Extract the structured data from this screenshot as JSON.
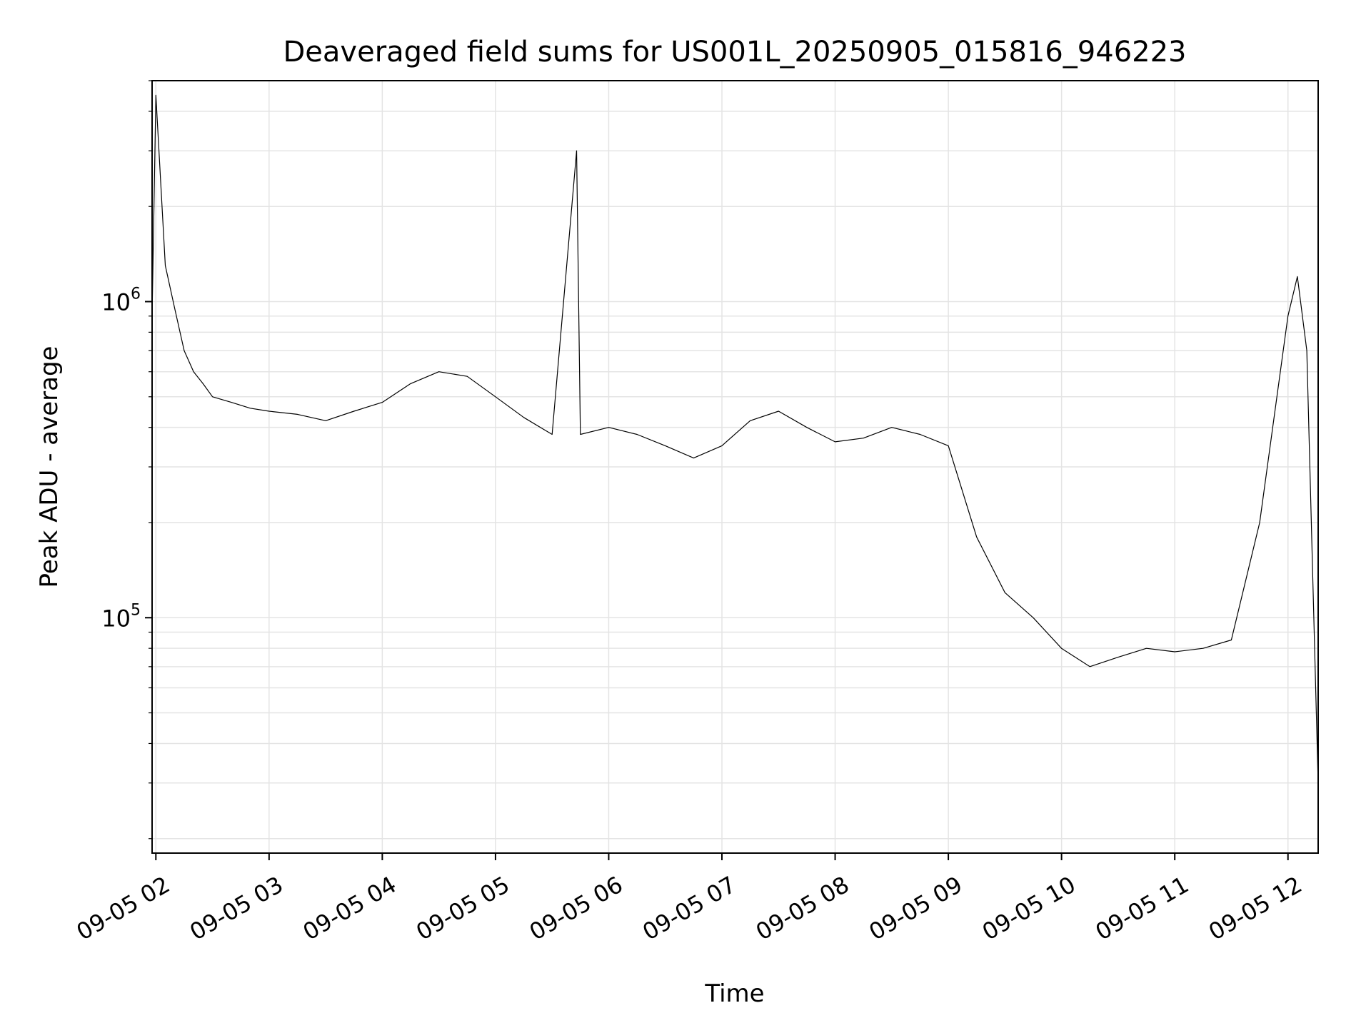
{
  "chart_data": {
    "type": "line",
    "title": "Deaveraged field sums for US001L_20250905_015816_946223",
    "xlabel": "Time",
    "ylabel": "Peak ADU - average",
    "x_tick_labels": [
      "09-05 02",
      "09-05 03",
      "09-05 04",
      "09-05 05",
      "09-05 06",
      "09-05 07",
      "09-05 08",
      "09-05 09",
      "09-05 10",
      "09-05 11",
      "09-05 12"
    ],
    "y_tick_labels": [
      {
        "base": "10",
        "exp": "5",
        "value": 100000
      },
      {
        "base": "10",
        "exp": "6",
        "value": 1000000
      }
    ],
    "y_scale": "log",
    "xlim": [
      "2025-09-05T01:58",
      "2025-09-05T12:16"
    ],
    "ylim": [
      18000,
      5000000
    ],
    "grid": true,
    "line_color": "#000000",
    "series": [
      {
        "values": [
          [
            "2025-09-05T01:58",
            900000
          ],
          [
            "2025-09-05T02:00",
            4500000
          ],
          [
            "2025-09-05T02:05",
            1300000
          ],
          [
            "2025-09-05T02:10",
            950000
          ],
          [
            "2025-09-05T02:15",
            700000
          ],
          [
            "2025-09-05T02:20",
            600000
          ],
          [
            "2025-09-05T02:25",
            550000
          ],
          [
            "2025-09-05T02:30",
            500000
          ],
          [
            "2025-09-05T02:40",
            480000
          ],
          [
            "2025-09-05T02:50",
            460000
          ],
          [
            "2025-09-05T03:00",
            450000
          ],
          [
            "2025-09-05T03:15",
            440000
          ],
          [
            "2025-09-05T03:30",
            420000
          ],
          [
            "2025-09-05T03:45",
            450000
          ],
          [
            "2025-09-05T04:00",
            480000
          ],
          [
            "2025-09-05T04:15",
            550000
          ],
          [
            "2025-09-05T04:30",
            600000
          ],
          [
            "2025-09-05T04:45",
            580000
          ],
          [
            "2025-09-05T05:00",
            500000
          ],
          [
            "2025-09-05T05:15",
            430000
          ],
          [
            "2025-09-05T05:30",
            380000
          ],
          [
            "2025-09-05T05:43",
            3000000
          ],
          [
            "2025-09-05T05:45",
            380000
          ],
          [
            "2025-09-05T06:00",
            400000
          ],
          [
            "2025-09-05T06:15",
            380000
          ],
          [
            "2025-09-05T06:30",
            350000
          ],
          [
            "2025-09-05T06:45",
            320000
          ],
          [
            "2025-09-05T07:00",
            350000
          ],
          [
            "2025-09-05T07:15",
            420000
          ],
          [
            "2025-09-05T07:30",
            450000
          ],
          [
            "2025-09-05T07:45",
            400000
          ],
          [
            "2025-09-05T08:00",
            360000
          ],
          [
            "2025-09-05T08:15",
            370000
          ],
          [
            "2025-09-05T08:30",
            400000
          ],
          [
            "2025-09-05T08:45",
            380000
          ],
          [
            "2025-09-05T09:00",
            350000
          ],
          [
            "2025-09-05T09:15",
            180000
          ],
          [
            "2025-09-05T09:30",
            120000
          ],
          [
            "2025-09-05T09:45",
            100000
          ],
          [
            "2025-09-05T10:00",
            80000
          ],
          [
            "2025-09-05T10:15",
            70000
          ],
          [
            "2025-09-05T10:30",
            75000
          ],
          [
            "2025-09-05T10:45",
            80000
          ],
          [
            "2025-09-05T11:00",
            78000
          ],
          [
            "2025-09-05T11:15",
            80000
          ],
          [
            "2025-09-05T11:30",
            85000
          ],
          [
            "2025-09-05T11:45",
            200000
          ],
          [
            "2025-09-05T12:00",
            900000
          ],
          [
            "2025-09-05T12:05",
            1200000
          ],
          [
            "2025-09-05T12:10",
            700000
          ],
          [
            "2025-09-05T12:16",
            30000
          ]
        ]
      }
    ]
  }
}
